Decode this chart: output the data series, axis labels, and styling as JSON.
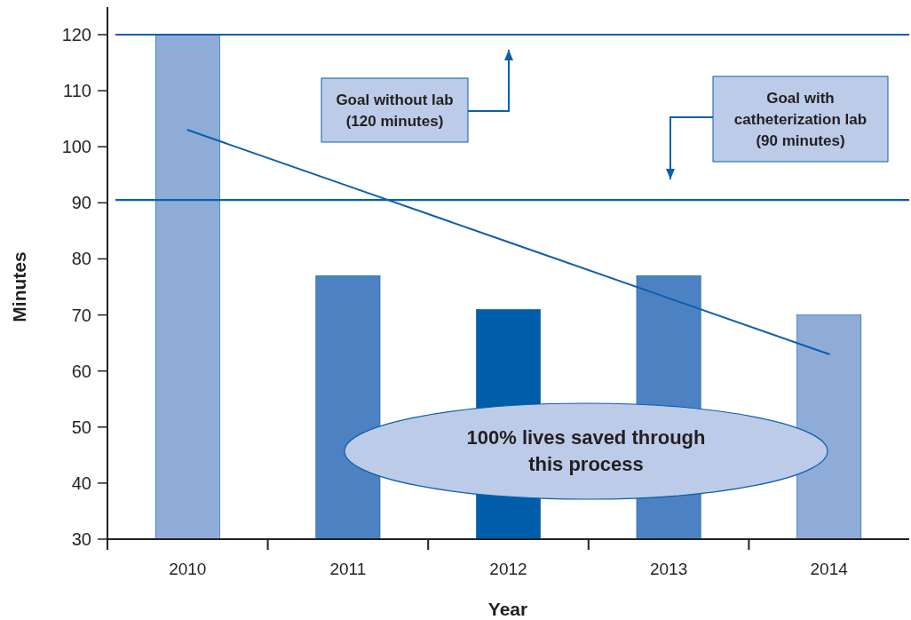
{
  "chart_data": {
    "type": "bar",
    "xlabel": "Year",
    "ylabel": "Minutes",
    "categories": [
      "2010",
      "2011",
      "2012",
      "2013",
      "2014"
    ],
    "series": [
      {
        "values": [
          120,
          77,
          71,
          77,
          70
        ],
        "colors": [
          "#8facd8",
          "#4d82c2",
          "#005daa",
          "#4d82c2",
          "#8facd8"
        ]
      },
      {
        "type": "line",
        "values": [
          103,
          93,
          83,
          73,
          63
        ],
        "color": "#0a5fac"
      }
    ],
    "ylim": [
      30,
      120
    ],
    "yticks": [
      30,
      40,
      50,
      60,
      70,
      80,
      90,
      100,
      110,
      120
    ],
    "ref_lines": [
      {
        "axis": "y",
        "value": 120,
        "color": "#0a5fac"
      },
      {
        "axis": "y",
        "value": 90.5,
        "color": "#0a5fac"
      }
    ],
    "annotations": [
      "Goal without lab\n(120 minutes)",
      "Goal with\ncatheterization lab\n(90 minutes)",
      "100% lives saved through\nthis process"
    ]
  }
}
